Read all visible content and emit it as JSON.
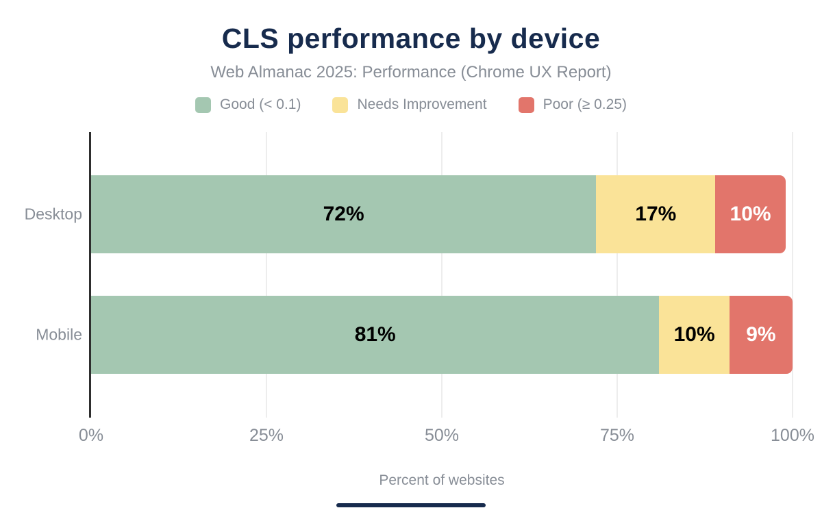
{
  "colors": {
    "title": "#172b4d",
    "muted_text": "#878d96",
    "axis_line": "#2e2e2e",
    "gridline": "#ededed",
    "background": "#ffffff",
    "footer_bar": "#172b4d",
    "good": "#a4c7b1",
    "needs_improvement": "#fae398",
    "poor": "#e2756b"
  },
  "chart_data": {
    "type": "bar",
    "orientation": "horizontal",
    "stacked": true,
    "title": "CLS performance by device",
    "subtitle": "Web Almanac 2025: Performance (Chrome UX Report)",
    "categories": [
      "Desktop",
      "Mobile"
    ],
    "series": [
      {
        "name": "Good (< 0.1)",
        "color": "#a4c7b1",
        "label_color": "#000000",
        "values": [
          72,
          81
        ]
      },
      {
        "name": "Needs Improvement",
        "color": "#fae398",
        "label_color": "#000000",
        "values": [
          17,
          10
        ]
      },
      {
        "name": "Poor (≥ 0.25)",
        "color": "#e2756b",
        "label_color": "#ffffff",
        "values": [
          10,
          9
        ]
      }
    ],
    "value_suffix": "%",
    "xlabel": "Percent of websites",
    "x_ticks": [
      "0%",
      "25%",
      "50%",
      "75%",
      "100%"
    ],
    "x_tick_values": [
      0,
      25,
      50,
      75,
      100
    ],
    "xlim": [
      0,
      100
    ],
    "grid": true,
    "legend_position": "top"
  }
}
